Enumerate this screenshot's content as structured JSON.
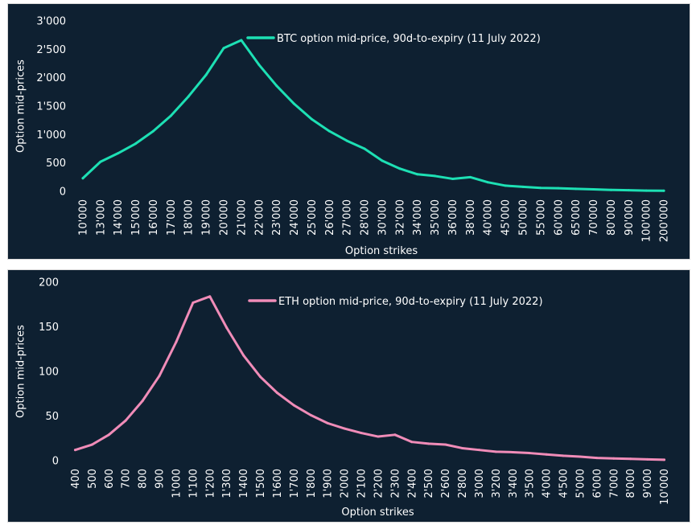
{
  "chart_data": [
    {
      "type": "line",
      "ylabel": "Option mid-prices",
      "xlabel": "Option strikes",
      "ylim": [
        0,
        3000
      ],
      "yticks": [
        "0",
        "500",
        "1'000",
        "1'500",
        "2'000",
        "2'500",
        "3'000"
      ],
      "yticks_values": [
        0,
        500,
        1000,
        1500,
        2000,
        2500,
        3000
      ],
      "categories": [
        "10'000",
        "13'000",
        "14'000",
        "15'000",
        "16'000",
        "17'000",
        "18'000",
        "19'000",
        "20'000",
        "21'000",
        "22'000",
        "23'000",
        "24'000",
        "25'000",
        "26'000",
        "27'000",
        "28'000",
        "30'000",
        "32'000",
        "34'000",
        "35'000",
        "36'000",
        "38'000",
        "40'000",
        "45'000",
        "50'000",
        "55'000",
        "60'000",
        "65'000",
        "70'000",
        "80'000",
        "90'000",
        "100'000",
        "200'000"
      ],
      "series": [
        {
          "name": "BTC option mid-price, 90d-to-expiry (11 July 2022)",
          "color": "#1de0b4",
          "values": [
            230,
            520,
            670,
            840,
            1060,
            1330,
            1670,
            2050,
            2520,
            2660,
            2230,
            1860,
            1540,
            1270,
            1060,
            890,
            750,
            540,
            400,
            300,
            270,
            220,
            250,
            160,
            100,
            80,
            60,
            55,
            45,
            35,
            25,
            20,
            12,
            10
          ]
        }
      ],
      "legend_position": "top-right",
      "grid": false
    },
    {
      "type": "line",
      "ylabel": "Option mid-prices",
      "xlabel": "Option strikes",
      "ylim": [
        0,
        200
      ],
      "yticks": [
        "0",
        "50",
        "100",
        "150",
        "200"
      ],
      "yticks_values": [
        0,
        50,
        100,
        150,
        200
      ],
      "categories": [
        "400",
        "500",
        "600",
        "700",
        "800",
        "900",
        "1'000",
        "1'100",
        "1'200",
        "1'300",
        "1'400",
        "1'500",
        "1'600",
        "1'700",
        "1'800",
        "1'900",
        "2'000",
        "2'100",
        "2'200",
        "2'300",
        "2'400",
        "2'500",
        "2'600",
        "2'800",
        "3'000",
        "3'200",
        "3'400",
        "3'500",
        "4'000",
        "4'500",
        "5'000",
        "6'000",
        "7'000",
        "8'000",
        "9'000",
        "10'000"
      ],
      "series": [
        {
          "name": "ETH option mid-price, 90d-to-expiry (11 July 2022)",
          "color": "#f08cb8",
          "values": [
            12,
            18,
            29,
            45,
            67,
            95,
            133,
            177,
            184,
            149,
            118,
            94,
            76,
            62,
            51,
            42,
            36,
            31,
            27,
            29,
            21,
            19,
            18,
            14,
            12,
            10,
            9.5,
            8.5,
            7,
            5.5,
            4.5,
            3,
            2.5,
            2,
            1.5,
            1
          ]
        }
      ],
      "legend_position": "top-right",
      "grid": false
    }
  ]
}
